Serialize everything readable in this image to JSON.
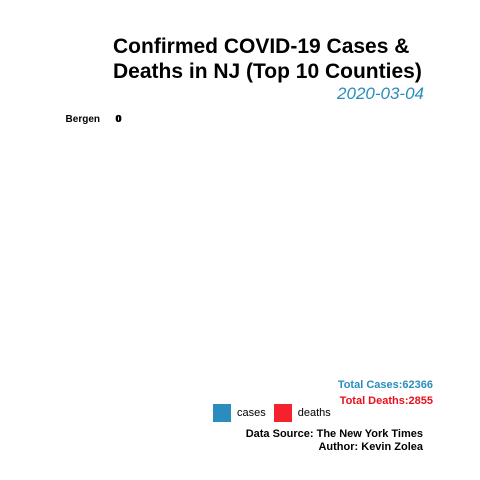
{
  "title_line1": "Confirmed COVID-19 Cases &",
  "title_line2": "Deaths in NJ (Top 10 Counties)",
  "date": "2020-03-04",
  "totals": {
    "cases_text": "Total Cases:62366",
    "deaths_text": "Total Deaths:2855"
  },
  "legend": {
    "cases_label": "cases",
    "deaths_label": "deaths"
  },
  "caption": {
    "source": "Data Source: The New York Times",
    "author": "Author: Kevin Zolea"
  },
  "colors": {
    "cases": "#2b8cbe",
    "deaths": "#f5222d",
    "subtitle": "#2b8cbe",
    "total_cases": "#2b8cbe",
    "total_deaths": "#e8101a"
  },
  "chart_data": {
    "type": "bar",
    "orientation": "horizontal",
    "categories": [
      "Bergen"
    ],
    "series": [
      {
        "name": "cases",
        "values": [
          0
        ]
      },
      {
        "name": "deaths",
        "values": [
          0
        ]
      }
    ],
    "data_labels": [
      "0",
      "0"
    ],
    "grid": false,
    "legend_position": "bottom"
  }
}
